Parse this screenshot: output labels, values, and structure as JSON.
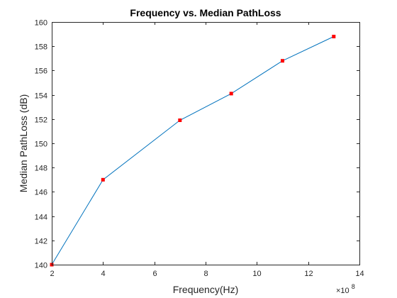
{
  "chart_data": {
    "type": "line",
    "title": "Frequency vs. Median PathLoss",
    "xlabel": "Frequency(Hz)",
    "ylabel": "Median PathLoss (dB)",
    "x_exponent_base": "×10",
    "x_exponent_power": "8",
    "x_scale": 100000000,
    "xlim": [
      200000000,
      1400000000
    ],
    "ylim": [
      140,
      160
    ],
    "xticks": [
      2,
      4,
      6,
      8,
      10,
      12,
      14
    ],
    "xtick_labels": [
      "2",
      "4",
      "6",
      "8",
      "10",
      "12",
      "14"
    ],
    "yticks": [
      140,
      142,
      144,
      146,
      148,
      150,
      152,
      154,
      156,
      158,
      160
    ],
    "ytick_labels": [
      "140",
      "142",
      "144",
      "146",
      "148",
      "150",
      "152",
      "154",
      "156",
      "158",
      "160"
    ],
    "grid": false,
    "series": [
      {
        "x": [
          200000000,
          400000000,
          700000000,
          900000000,
          1100000000,
          1300000000
        ],
        "y": [
          140.0,
          147.0,
          151.9,
          154.1,
          156.8,
          158.8
        ],
        "line_color": "#0072bd",
        "marker_color": "#ff0000",
        "marker": "square"
      }
    ]
  }
}
